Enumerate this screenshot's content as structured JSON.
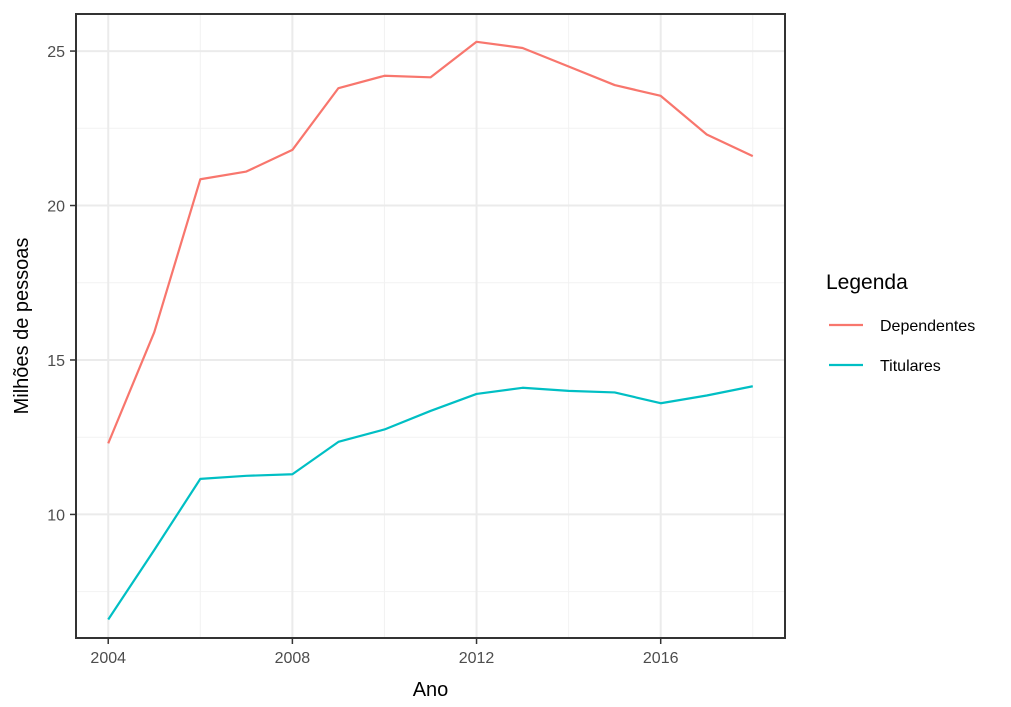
{
  "chart_data": {
    "type": "line",
    "xlabel": "Ano",
    "ylabel": "Milhões de pessoas",
    "xlim": [
      2003.3,
      2018.7
    ],
    "ylim": [
      6.0,
      26.2
    ],
    "xticks": [
      2004,
      2008,
      2012,
      2016
    ],
    "yticks": [
      10,
      15,
      20,
      25
    ],
    "x_tick_labels": [
      "2004",
      "2008",
      "2012",
      "2016"
    ],
    "y_tick_labels": [
      "10",
      "15",
      "20",
      "25"
    ],
    "grid": true,
    "legend": {
      "title": "Legenda",
      "position": "right"
    },
    "x": [
      2004,
      2005,
      2006,
      2007,
      2008,
      2009,
      2010,
      2011,
      2012,
      2013,
      2014,
      2015,
      2016,
      2017,
      2018
    ],
    "series": [
      {
        "name": "Dependentes",
        "color": "#F8766D",
        "values": [
          12.3,
          15.9,
          20.85,
          21.1,
          21.8,
          23.8,
          24.2,
          24.15,
          25.3,
          25.1,
          24.5,
          23.9,
          23.55,
          22.3,
          21.6
        ]
      },
      {
        "name": "Titulares",
        "color": "#00BFC4",
        "values": [
          6.6,
          8.85,
          11.15,
          11.25,
          11.3,
          12.35,
          12.75,
          13.35,
          13.9,
          14.1,
          14.0,
          13.95,
          13.6,
          13.85,
          14.15
        ]
      }
    ]
  }
}
